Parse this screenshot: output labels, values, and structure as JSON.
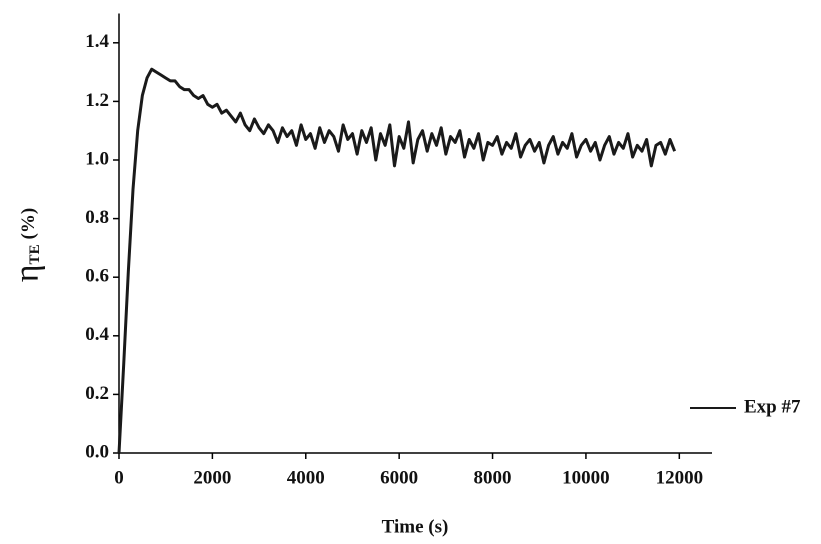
{
  "chart_data": {
    "type": "line",
    "xlabel": "Time (s)",
    "ylabel": "η",
    "ylabel_sub": "TE",
    "ylabel_unit": "(%)",
    "x": [
      0,
      100,
      200,
      300,
      400,
      500,
      600,
      700,
      800,
      900,
      1000,
      1100,
      1200,
      1300,
      1400,
      1500,
      1600,
      1700,
      1800,
      1900,
      2000,
      2100,
      2200,
      2300,
      2400,
      2500,
      2600,
      2700,
      2800,
      2900,
      3000,
      3100,
      3200,
      3300,
      3400,
      3500,
      3600,
      3700,
      3800,
      3900,
      4000,
      4100,
      4200,
      4300,
      4400,
      4500,
      4600,
      4700,
      4800,
      4900,
      5000,
      5100,
      5200,
      5300,
      5400,
      5500,
      5600,
      5700,
      5800,
      5900,
      6000,
      6100,
      6200,
      6300,
      6400,
      6500,
      6600,
      6700,
      6800,
      6900,
      7000,
      7100,
      7200,
      7300,
      7400,
      7500,
      7600,
      7700,
      7800,
      7900,
      8000,
      8100,
      8200,
      8300,
      8400,
      8500,
      8600,
      8700,
      8800,
      8900,
      9000,
      9100,
      9200,
      9300,
      9400,
      9500,
      9600,
      9700,
      9800,
      9900,
      10000,
      10100,
      10200,
      10300,
      10400,
      10500,
      10600,
      10700,
      10800,
      10900,
      11000,
      11100,
      11200,
      11300,
      11400,
      11500,
      11600,
      11700,
      11800,
      11900
    ],
    "series": [
      {
        "name": "Exp #7",
        "color": "#1a1a1a",
        "values": [
          0,
          0.3,
          0.62,
          0.9,
          1.1,
          1.22,
          1.28,
          1.31,
          1.3,
          1.29,
          1.28,
          1.27,
          1.27,
          1.25,
          1.24,
          1.24,
          1.22,
          1.21,
          1.22,
          1.19,
          1.18,
          1.19,
          1.16,
          1.17,
          1.15,
          1.13,
          1.16,
          1.12,
          1.1,
          1.14,
          1.11,
          1.09,
          1.12,
          1.1,
          1.06,
          1.11,
          1.08,
          1.1,
          1.05,
          1.12,
          1.07,
          1.09,
          1.04,
          1.11,
          1.06,
          1.1,
          1.08,
          1.03,
          1.12,
          1.07,
          1.09,
          1.02,
          1.1,
          1.06,
          1.11,
          1.0,
          1.09,
          1.05,
          1.12,
          0.98,
          1.08,
          1.04,
          1.13,
          0.99,
          1.07,
          1.1,
          1.03,
          1.09,
          1.05,
          1.11,
          1.02,
          1.08,
          1.06,
          1.1,
          1.01,
          1.07,
          1.04,
          1.09,
          1.0,
          1.06,
          1.05,
          1.08,
          1.02,
          1.06,
          1.04,
          1.09,
          1.01,
          1.05,
          1.07,
          1.03,
          1.06,
          0.99,
          1.05,
          1.08,
          1.02,
          1.06,
          1.04,
          1.09,
          1.01,
          1.05,
          1.07,
          1.03,
          1.06,
          1.0,
          1.05,
          1.08,
          1.02,
          1.06,
          1.04,
          1.09,
          1.01,
          1.05,
          1.03,
          1.07,
          0.98,
          1.05,
          1.06,
          1.02,
          1.07,
          1.03
        ]
      }
    ],
    "xlim": [
      0,
      12700
    ],
    "xticks": [
      0,
      2000,
      4000,
      6000,
      8000,
      10000,
      12000
    ],
    "ylim": [
      0,
      1.5
    ],
    "yticks": [
      {
        "value": 0,
        "label": "0.0"
      },
      0.2,
      0.4,
      0.6,
      0.8,
      {
        "value": 1,
        "label": "1.0"
      },
      1.2,
      1.4
    ],
    "legend": "lower right"
  }
}
